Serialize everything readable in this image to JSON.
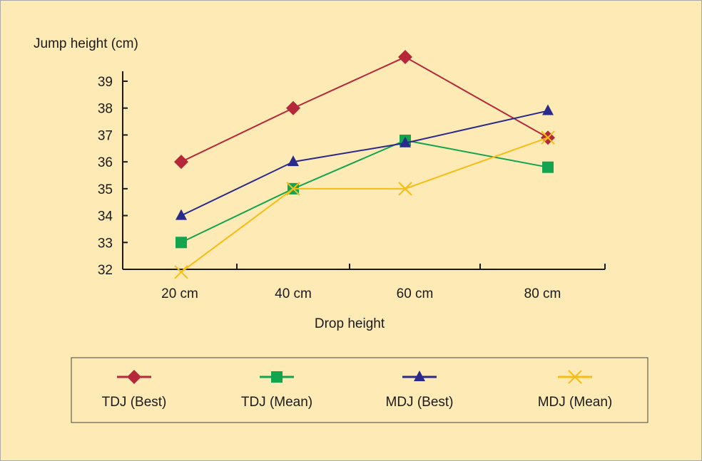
{
  "chart_data": {
    "type": "line",
    "ylabel": "Jump height (cm)",
    "xlabel": "Drop height",
    "categories": [
      "20 cm",
      "40 cm",
      "60 cm",
      "80 cm"
    ],
    "ylim": [
      32,
      39
    ],
    "yticks": [
      "32",
      "33",
      "34",
      "35",
      "36",
      "37",
      "38",
      "39"
    ],
    "grid": false,
    "legend_position": "bottom",
    "series": [
      {
        "name": "TDJ (Best)",
        "color": "#b5283a",
        "marker": "diamond",
        "values": [
          36,
          38,
          39.9,
          36.9
        ]
      },
      {
        "name": "TDJ (Mean)",
        "color": "#13a450",
        "marker": "square",
        "values": [
          33,
          35,
          36.8,
          35.8
        ]
      },
      {
        "name": "MDJ (Best)",
        "color": "#2a2a8c",
        "marker": "triangle",
        "values": [
          34,
          36,
          36.7,
          37.9
        ]
      },
      {
        "name": "MDJ (Mean)",
        "color": "#f6bd16",
        "marker": "x",
        "values": [
          31.9,
          35,
          35,
          36.9
        ]
      }
    ]
  },
  "colors": {
    "background": "#fdeab4",
    "axis": "#1a1a1a",
    "frame": "#a9a9a9"
  }
}
